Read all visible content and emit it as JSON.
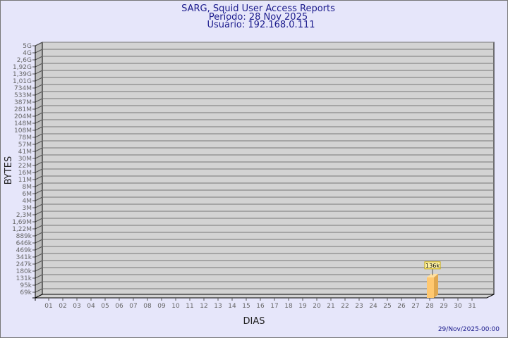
{
  "chart_data": {
    "type": "bar",
    "title": "SARG, Squid User Access Reports",
    "subtitle_period": "Período: 28 Nov 2025",
    "subtitle_user": "Usuário: 192.168.0.111",
    "xlabel": "DIAS",
    "ylabel": "BYTES",
    "y_scale": "log",
    "y_tick_labels": [
      "5G",
      "4G",
      "2,6G",
      "1,92G",
      "1,39G",
      "1,01G",
      "734M",
      "533M",
      "387M",
      "281M",
      "204M",
      "148M",
      "108M",
      "78M",
      "57M",
      "41M",
      "30M",
      "22M",
      "16M",
      "11M",
      "8M",
      "6M",
      "4M",
      "3M",
      "2,3M",
      "1,69M",
      "1,22M",
      "889k",
      "646k",
      "469k",
      "341k",
      "247k",
      "180k",
      "131k",
      "95k",
      "69k"
    ],
    "categories": [
      "01",
      "02",
      "03",
      "04",
      "05",
      "06",
      "07",
      "08",
      "09",
      "10",
      "11",
      "12",
      "13",
      "14",
      "15",
      "16",
      "17",
      "18",
      "19",
      "20",
      "21",
      "22",
      "23",
      "24",
      "25",
      "26",
      "27",
      "28",
      "29",
      "30",
      "31"
    ],
    "bars": [
      {
        "category": "28",
        "value_label": "136k",
        "value": 136000
      }
    ],
    "grid": true,
    "timestamp": "29/Nov/2025-00:00",
    "colors": {
      "background": "#e6e6fa",
      "plot": "#d3d3d3",
      "bar": "#ffc870",
      "bar_side": "#e0a850",
      "text": "#1a1a8c"
    }
  }
}
